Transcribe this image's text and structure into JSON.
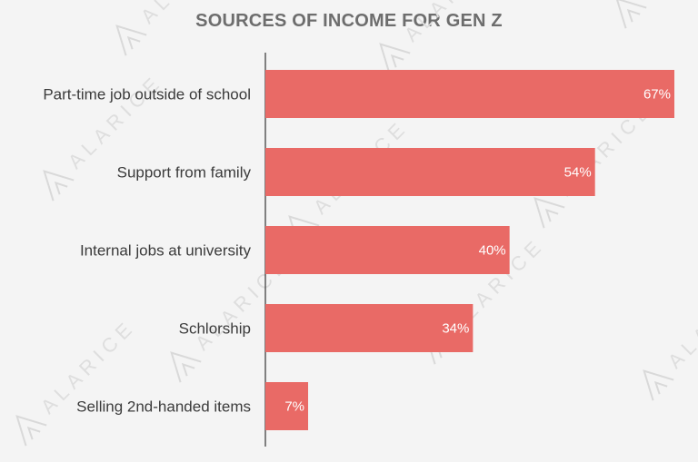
{
  "chart_data": {
    "type": "bar",
    "orientation": "horizontal",
    "title": "SOURCES OF INCOME FOR GEN Z",
    "categories": [
      "Part-time job outside of school",
      "Support from family",
      "Internal jobs at university",
      "Schlorship",
      "Selling 2nd-handed items"
    ],
    "values": [
      67,
      54,
      40,
      34,
      7
    ],
    "value_labels": [
      "67%",
      "54%",
      "40%",
      "34%",
      "7%"
    ],
    "xlim": [
      0,
      70
    ],
    "bar_color": "#e96a66",
    "grid": false,
    "legend": "none"
  },
  "watermark": {
    "text": "ALARICE"
  }
}
